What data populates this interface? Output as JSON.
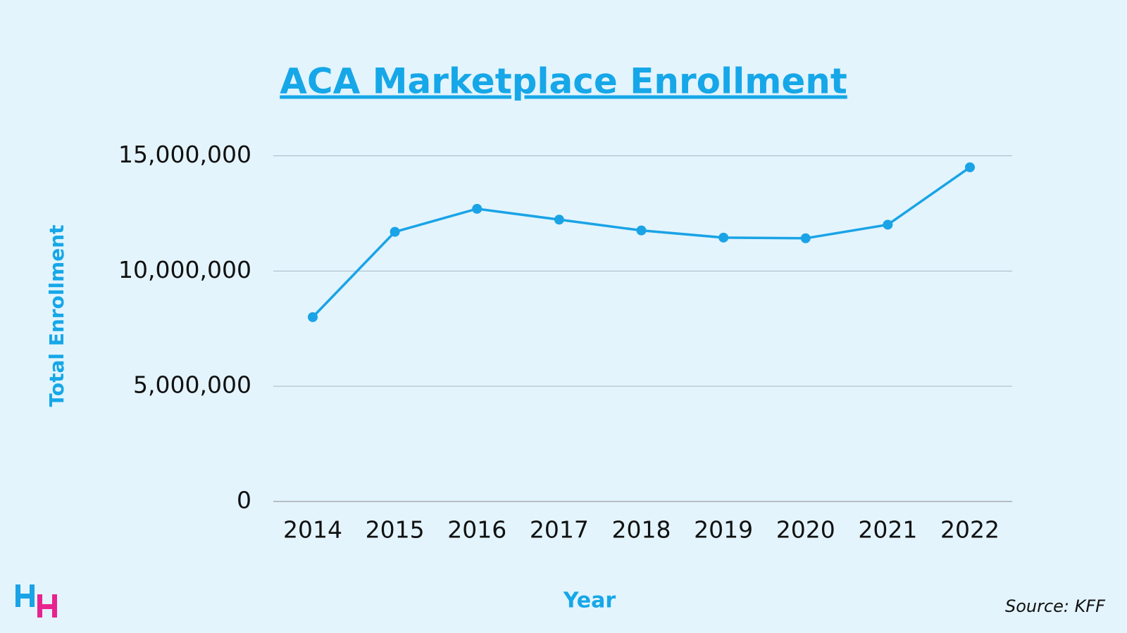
{
  "chart_data": {
    "type": "line",
    "title": "ACA Marketplace Enrollment",
    "x_label": "Year",
    "y_label": "Total Enrollment",
    "source": "Source: KFF",
    "categories": [
      "2014",
      "2015",
      "2016",
      "2017",
      "2018",
      "2019",
      "2020",
      "2021",
      "2022"
    ],
    "series": [
      {
        "name": "Total Enrollment",
        "color": "#1aa3e6",
        "values": [
          8000000,
          11700000,
          12700000,
          12230000,
          11760000,
          11450000,
          11420000,
          12010000,
          14500000
        ]
      }
    ],
    "ylim": [
      0,
      15000000
    ],
    "yticks": [
      0,
      {
        "value": 5000000,
        "label": "5,000,000"
      },
      {
        "value": 10000000,
        "label": "10,000,000"
      },
      {
        "value": 15000000,
        "label": "15,000,000"
      }
    ],
    "grid": true
  }
}
